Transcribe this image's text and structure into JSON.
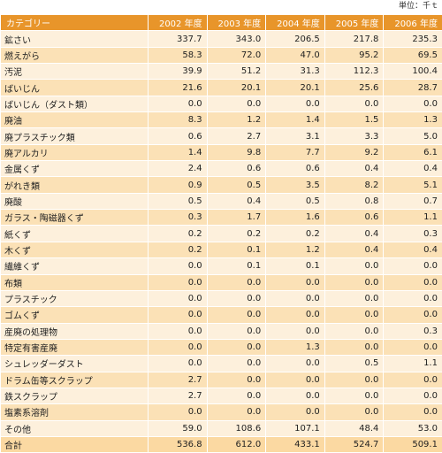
{
  "unit_label": "単位：千ｔ",
  "headers": [
    "カテゴリー",
    "2002 年度",
    "2003 年度",
    "2004 年度",
    "2005 年度",
    "2006 年度"
  ],
  "rows": [
    {
      "label": "鉱さい",
      "values": [
        "337.7",
        "343.0",
        "206.5",
        "217.8",
        "235.3"
      ]
    },
    {
      "label": "燃えがら",
      "values": [
        "58.3",
        "72.0",
        "47.0",
        "95.2",
        "69.5"
      ]
    },
    {
      "label": "汚泥",
      "values": [
        "39.9",
        "51.2",
        "31.3",
        "112.3",
        "100.4"
      ]
    },
    {
      "label": "ばいじん",
      "values": [
        "21.6",
        "20.1",
        "20.1",
        "25.6",
        "28.7"
      ]
    },
    {
      "label": "ばいじん（ダスト類）",
      "values": [
        "0.0",
        "0.0",
        "0.0",
        "0.0",
        "0.0"
      ]
    },
    {
      "label": "廃油",
      "values": [
        "8.3",
        "1.2",
        "1.4",
        "1.5",
        "1.3"
      ]
    },
    {
      "label": "廃プラスチック類",
      "values": [
        "0.6",
        "2.7",
        "3.1",
        "3.3",
        "5.0"
      ]
    },
    {
      "label": "廃アルカリ",
      "values": [
        "1.4",
        "9.8",
        "7.7",
        "9.2",
        "6.1"
      ]
    },
    {
      "label": "金属くず",
      "values": [
        "2.4",
        "0.6",
        "0.6",
        "0.4",
        "0.4"
      ]
    },
    {
      "label": "がれき類",
      "values": [
        "0.9",
        "0.5",
        "3.5",
        "8.2",
        "5.1"
      ]
    },
    {
      "label": "廃酸",
      "values": [
        "0.5",
        "0.4",
        "0.5",
        "0.8",
        "0.7"
      ]
    },
    {
      "label": "ガラス・陶磁器くず",
      "values": [
        "0.3",
        "1.7",
        "1.6",
        "0.6",
        "1.1"
      ]
    },
    {
      "label": "紙くず",
      "values": [
        "0.2",
        "0.2",
        "0.2",
        "0.4",
        "0.3"
      ]
    },
    {
      "label": "木くず",
      "values": [
        "0.2",
        "0.1",
        "1.2",
        "0.4",
        "0.4"
      ]
    },
    {
      "label": "繊維くず",
      "values": [
        "0.0",
        "0.1",
        "0.1",
        "0.0",
        "0.0"
      ]
    },
    {
      "label": "布類",
      "values": [
        "0.0",
        "0.0",
        "0.0",
        "0.0",
        "0.0"
      ]
    },
    {
      "label": "プラスチック",
      "values": [
        "0.0",
        "0.0",
        "0.0",
        "0.0",
        "0.0"
      ]
    },
    {
      "label": "ゴムくず",
      "values": [
        "0.0",
        "0.0",
        "0.0",
        "0.0",
        "0.0"
      ]
    },
    {
      "label": "産廃の処理物",
      "values": [
        "0.0",
        "0.0",
        "0.0",
        "0.0",
        "0.3"
      ]
    },
    {
      "label": "特定有害産廃",
      "values": [
        "0.0",
        "0.0",
        "1.3",
        "0.0",
        "0.0"
      ]
    },
    {
      "label": "シュレッダーダスト",
      "values": [
        "0.0",
        "0.0",
        "0.0",
        "0.5",
        "1.1"
      ]
    },
    {
      "label": "ドラム缶等スクラップ",
      "values": [
        "2.7",
        "0.0",
        "0.0",
        "0.0",
        "0.0"
      ]
    },
    {
      "label": "鉄スクラップ",
      "values": [
        "2.7",
        "0.0",
        "0.0",
        "0.0",
        "0.0"
      ]
    },
    {
      "label": "塩素系溶剤",
      "values": [
        "0.0",
        "0.0",
        "0.0",
        "0.0",
        "0.0"
      ]
    },
    {
      "label": "その他",
      "values": [
        "59.0",
        "108.6",
        "107.1",
        "48.4",
        "53.0"
      ]
    },
    {
      "label": "合計",
      "values": [
        "536.8",
        "612.0",
        "433.1",
        "524.7",
        "509.1"
      ]
    }
  ],
  "colors": {
    "header_bg": "#e8952a",
    "row_odd": "#fdf0dc",
    "row_even": "#fbe1b6"
  }
}
